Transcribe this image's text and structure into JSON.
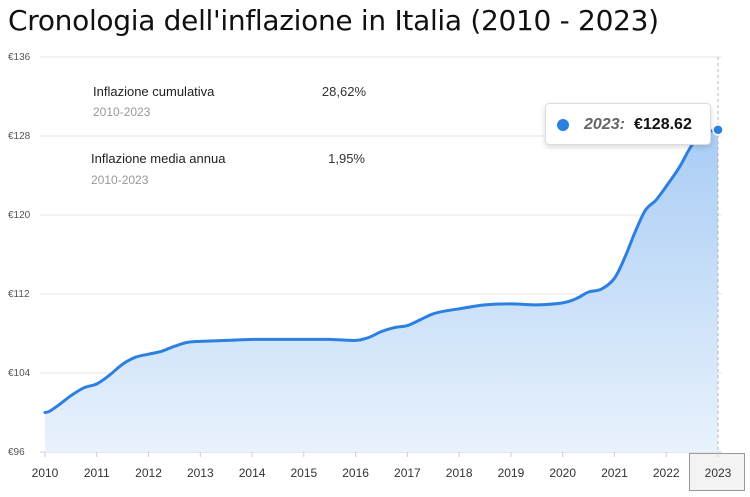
{
  "title": "Cronologia dell'inflazione in Italia (2010 - 2023)",
  "stats": [
    {
      "label": "Inflazione cumulativa",
      "period": "2010-2023",
      "value": "28,62%"
    },
    {
      "label": "Inflazione media annua",
      "period": "2010-2023",
      "value": "1,95%"
    }
  ],
  "tooltip": {
    "year": "2023:",
    "value": "€128.62"
  },
  "colors": {
    "line": "#2d7fe0",
    "fill_top": "#a9cdf5",
    "fill_bottom": "#e9f2fc",
    "grid": "#e6e6e6"
  },
  "chart_data": {
    "type": "area",
    "title": "Cronologia dell'inflazione in Italia (2010 - 2023)",
    "xlabel": "",
    "ylabel": "",
    "ylim": [
      96,
      136
    ],
    "xlim": [
      2010,
      2023
    ],
    "y_ticks": [
      "€96",
      "€104",
      "€112",
      "€120",
      "€128",
      "€136"
    ],
    "y_tick_values": [
      96,
      104,
      112,
      120,
      128,
      136
    ],
    "x_ticks": [
      "2010",
      "2011",
      "2012",
      "2013",
      "2014",
      "2015",
      "2016",
      "2017",
      "2018",
      "2019",
      "2020",
      "2021",
      "2022",
      "2023"
    ],
    "x_tick_values": [
      2010,
      2011,
      2012,
      2013,
      2014,
      2015,
      2016,
      2017,
      2018,
      2019,
      2020,
      2021,
      2022,
      2023
    ],
    "highlight_year": "2023",
    "grid": true,
    "series": [
      {
        "x": [
          2010,
          2010.08,
          2010.25,
          2010.5,
          2010.75,
          2011,
          2011.25,
          2011.5,
          2011.75,
          2012,
          2012.25,
          2012.5,
          2012.75,
          2013,
          2013.5,
          2014,
          2014.5,
          2015,
          2015.5,
          2016,
          2016.25,
          2016.5,
          2016.75,
          2017,
          2017.25,
          2017.5,
          2017.75,
          2018,
          2018.5,
          2019,
          2019.5,
          2020,
          2020.25,
          2020.5,
          2020.75,
          2021,
          2021.2,
          2021.4,
          2021.6,
          2021.8,
          2022,
          2022.25,
          2022.5,
          2022.75,
          2023
        ],
        "values": [
          100.0,
          100.1,
          100.7,
          101.7,
          102.5,
          102.9,
          103.8,
          104.9,
          105.6,
          105.9,
          106.2,
          106.7,
          107.1,
          107.2,
          107.3,
          107.4,
          107.4,
          107.4,
          107.4,
          107.3,
          107.6,
          108.2,
          108.6,
          108.8,
          109.4,
          110.0,
          110.3,
          110.5,
          110.9,
          111.0,
          110.9,
          111.1,
          111.5,
          112.2,
          112.5,
          113.6,
          115.7,
          118.3,
          120.5,
          121.5,
          122.9,
          124.8,
          127.1,
          128.3,
          128.62
        ]
      }
    ]
  }
}
